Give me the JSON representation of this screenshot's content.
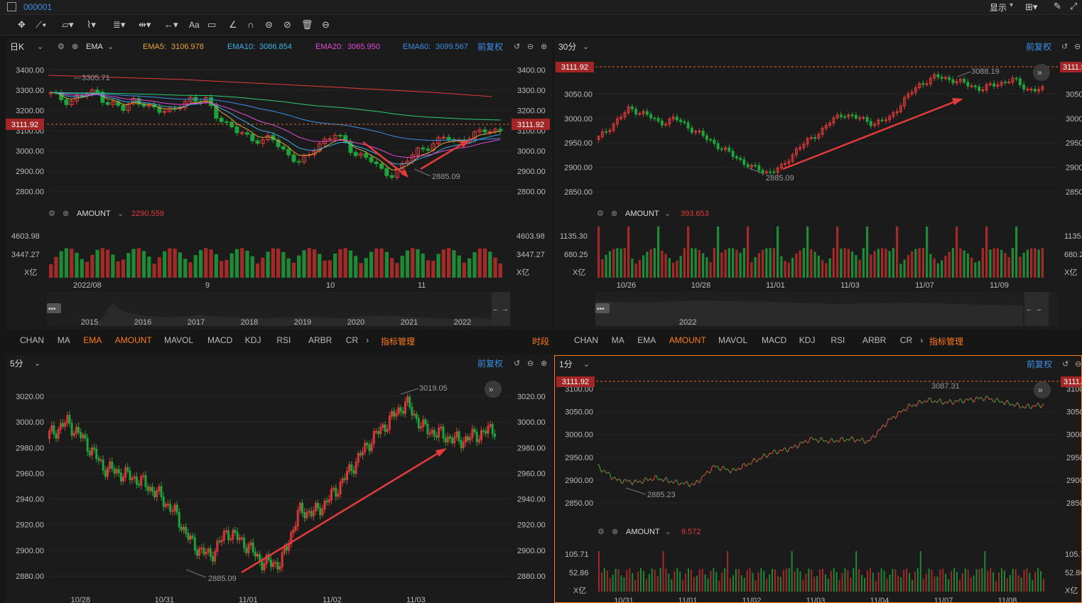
{
  "window": {
    "code": "000001",
    "display_label": "显示"
  },
  "colors": {
    "up": "#e33b3b",
    "down": "#1fa33a",
    "accent": "#ff7a1a",
    "price_line": "#e06a2a",
    "blue": "#3a8fe8"
  },
  "tabs": [
    "CHAN",
    "MA",
    "EMA",
    "AMOUNT",
    "MAVOL",
    "MACD",
    "KDJ",
    "RSI",
    "ARBR",
    "CR"
  ],
  "tab_manage": "指标管理",
  "tab_extra": "时段",
  "adjust_label": "前复权",
  "panels": {
    "daily": {
      "period": "日K",
      "indicator": "EMA",
      "ema": [
        {
          "label": "EMA5:",
          "value": "3106.978",
          "color": "#e8a33a"
        },
        {
          "label": "EMA10:",
          "value": "3086.854",
          "color": "#3ab0e8"
        },
        {
          "label": "EMA20:",
          "value": "3065.950",
          "color": "#e24bd8"
        },
        {
          "label": "EMA60:",
          "value": "3099.567",
          "color": "#3a8fe8"
        }
      ],
      "price_tag": "3111.92",
      "high_label": "3305.71",
      "low_label": "2885.09",
      "amount_label": "AMOUNT",
      "amount_value": "2290.559",
      "vol_ticks": [
        "4603.98",
        "3447.27"
      ],
      "unit": "X亿",
      "dates": [
        "2022/08",
        "9",
        "10",
        "11"
      ],
      "years": [
        "2015",
        "2016",
        "2017",
        "2018",
        "2019",
        "2020",
        "2021",
        "2022"
      ]
    },
    "min30": {
      "period": "30分",
      "price_tag": "3111.92",
      "high_label": "3088.19",
      "low_label": "2885.09",
      "amount_label": "AMOUNT",
      "amount_value": "393.653",
      "vol_ticks": [
        "1135.30",
        "680.25"
      ],
      "unit": "X亿",
      "dates": [
        "10/26",
        "10/28",
        "11/01",
        "11/03",
        "11/07",
        "11/09"
      ],
      "years": [
        "2022"
      ]
    },
    "min5": {
      "period": "5分",
      "high_label": "3019.05",
      "low_label": "2885.09",
      "dates": [
        "10/28",
        "10/31",
        "11/01",
        "11/02",
        "11/03"
      ]
    },
    "min1": {
      "period": "1分",
      "price_tag": "3111.92",
      "high_label": "3087.31",
      "low_label": "2885.23",
      "amount_label": "AMOUNT",
      "amount_value": "9.572",
      "vol_ticks": [
        "105.71",
        "52.86"
      ],
      "unit": "X亿",
      "dates": [
        "10/31",
        "11/01",
        "11/02",
        "11/03",
        "11/04",
        "11/07",
        "11/08"
      ]
    }
  },
  "chart_data": [
    {
      "type": "candlestick",
      "name_shown": "日K",
      "yticks": [
        "3400.00",
        "3300.00",
        "3200.00",
        "3100.00",
        "3000.00",
        "2900.00",
        "2800.00"
      ],
      "ylim": [
        2750,
        3450
      ],
      "close": [
        3280,
        3260,
        3240,
        3270,
        3280,
        3290,
        3240,
        3230,
        3200,
        3250,
        3240,
        3210,
        3190,
        3200,
        3230,
        3250,
        3240,
        3260,
        3180,
        3130,
        3100,
        3090,
        3060,
        3040,
        3070,
        3020,
        2980,
        2940,
        2970,
        3030,
        3060,
        3080,
        3040,
        2990,
        2980,
        2950,
        2900,
        2880,
        2920,
        2960,
        3000,
        3020,
        3050,
        3070,
        3040,
        3060,
        3080,
        3100,
        3090,
        3110
      ]
    },
    {
      "type": "candlestick",
      "name_shown": "30分",
      "yticks": [
        "3050.00",
        "3000.00",
        "2950.00",
        "2900.00",
        "2850.00"
      ],
      "ylim": [
        2830,
        3120
      ],
      "close": [
        2960,
        2990,
        3020,
        3010,
        2990,
        3000,
        2980,
        2960,
        2940,
        2920,
        2900,
        2890,
        2900,
        2940,
        2960,
        2990,
        3010,
        3000,
        2990,
        3000,
        3040,
        3070,
        3085,
        3080,
        3070,
        3060,
        3070,
        3080,
        3060,
        3058
      ]
    },
    {
      "type": "candlestick",
      "name_shown": "5分",
      "yticks": [
        "3020.00",
        "3000.00",
        "2980.00",
        "2960.00",
        "2940.00",
        "2920.00",
        "2900.00",
        "2880.00"
      ],
      "ylim": [
        2875,
        3030
      ],
      "close": [
        2990,
        3000,
        2985,
        2965,
        2960,
        2955,
        2945,
        2930,
        2905,
        2895,
        2915,
        2905,
        2890,
        2890,
        2930,
        2930,
        2945,
        2965,
        2985,
        3000,
        3015,
        2995,
        2990,
        2985,
        2990,
        2995
      ]
    },
    {
      "type": "line",
      "name_shown": "1分",
      "yticks": [
        "3100.00",
        "3050.00",
        "3000.00",
        "2950.00",
        "2900.00",
        "2850.00"
      ],
      "ylim": [
        2830,
        3110
      ],
      "close": [
        2930,
        2900,
        2895,
        2905,
        2895,
        2890,
        2930,
        2920,
        2940,
        2960,
        2970,
        2990,
        2985,
        2990,
        2985,
        3030,
        3060,
        3075,
        3070,
        3075,
        3080,
        3070,
        3060,
        3065
      ]
    }
  ]
}
